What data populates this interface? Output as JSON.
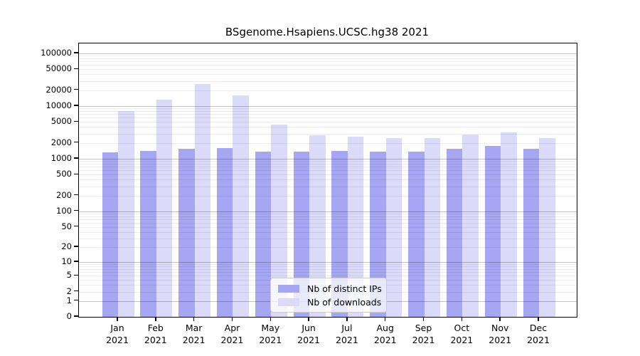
{
  "figure": {
    "title": "BSgenome.Hsapiens.UCSC.hg38 2021"
  },
  "legend": {
    "items": [
      {
        "label": "Nb of distinct IPs"
      },
      {
        "label": "Nb of downloads"
      }
    ],
    "position": "inside-bottom-center"
  },
  "chart_data": {
    "type": "bar",
    "title": "BSgenome.Hsapiens.UCSC.hg38 2021",
    "categories": [
      "Jan 2021",
      "Feb 2021",
      "Mar 2021",
      "Apr 2021",
      "May 2021",
      "Jun 2021",
      "Jul 2021",
      "Aug 2021",
      "Sep 2021",
      "Oct 2021",
      "Nov 2021",
      "Dec 2021"
    ],
    "x_tick_months": [
      "Jan",
      "Feb",
      "Mar",
      "Apr",
      "May",
      "Jun",
      "Jul",
      "Aug",
      "Sep",
      "Oct",
      "Nov",
      "Dec"
    ],
    "x_tick_year": "2021",
    "series": [
      {
        "name": "Nb of distinct IPs",
        "color": "#a6a6f2",
        "values": [
          1330,
          1400,
          1530,
          1580,
          1380,
          1380,
          1420,
          1350,
          1370,
          1560,
          1730,
          1530
        ]
      },
      {
        "name": "Nb of downloads",
        "color": "#dbdbf9",
        "values": [
          8000,
          13100,
          26500,
          16100,
          4460,
          2820,
          2620,
          2490,
          2490,
          2850,
          3160,
          2490
        ]
      }
    ],
    "y_scale": "log1p",
    "y_axis_ticks": [
      0,
      1,
      2,
      5,
      10,
      20,
      50,
      100,
      200,
      500,
      1000,
      2000,
      5000,
      10000,
      20000,
      50000,
      100000
    ],
    "ylim": [
      0,
      153000
    ],
    "grid": "both",
    "legend_position": "inside-bottom-center"
  },
  "colors": {
    "distinct_ips_bar": "#a6a6f2",
    "downloads_bar": "#dbdbf9",
    "major_grid": "#c3c3c3",
    "minor_grid": "#ededed",
    "axis": "#000000",
    "background": "#ffffff"
  }
}
